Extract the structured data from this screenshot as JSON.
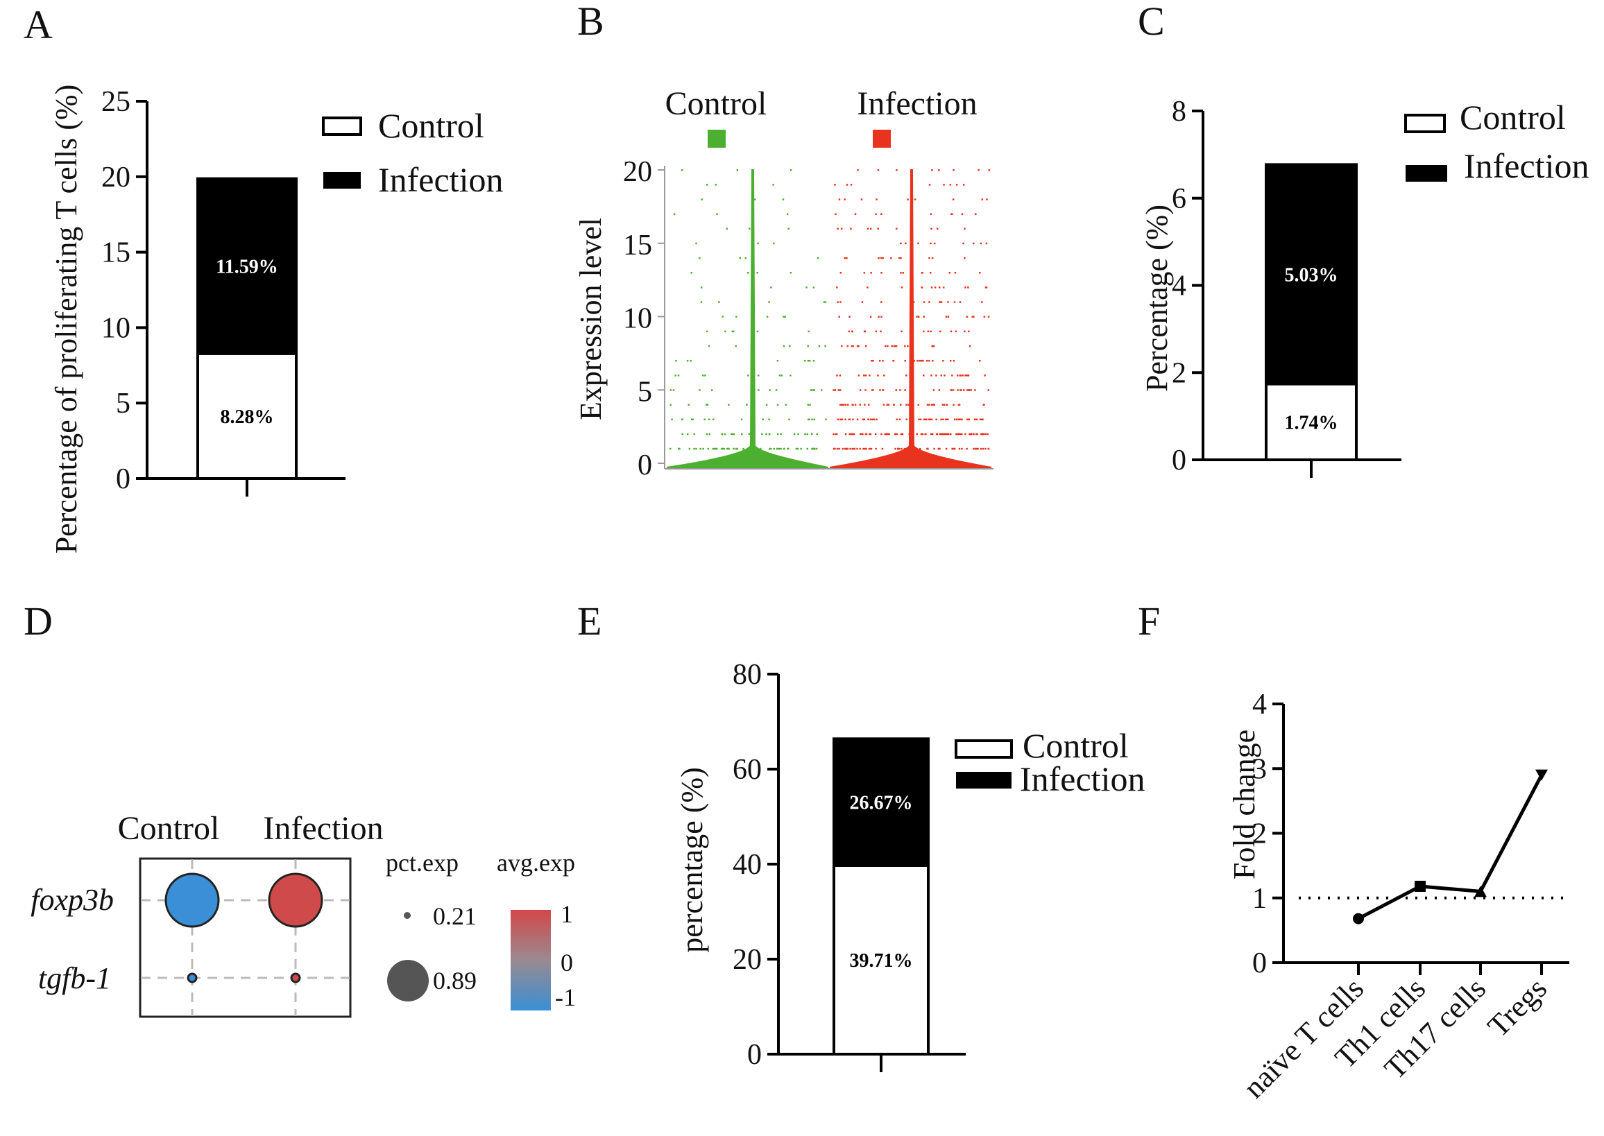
{
  "panels": {
    "A": {
      "letter": "A",
      "ylabel": "Percentage of proliferating T cells (%)",
      "yticks": [
        0,
        5,
        10,
        15,
        20,
        25
      ],
      "ylim": [
        0,
        25
      ],
      "legend": [
        "Control",
        "Infection"
      ],
      "segments": [
        {
          "name": "Control",
          "value": 8.28,
          "label": "8.28%",
          "color": "#ffffff"
        },
        {
          "name": "Infection",
          "value": 11.59,
          "label": "11.59%",
          "color": "#000000"
        }
      ]
    },
    "B": {
      "letter": "B",
      "ylabel": "Expression level",
      "yticks": [
        0,
        5,
        10,
        15,
        20
      ],
      "ylim": [
        0,
        20
      ],
      "groups": [
        {
          "name": "Control",
          "color": "#4caf2f"
        },
        {
          "name": "Infection",
          "color": "#e8331e"
        }
      ]
    },
    "C": {
      "letter": "C",
      "ylabel": "Percentage (%)",
      "yticks": [
        0,
        2,
        4,
        6,
        8
      ],
      "ylim": [
        0,
        8
      ],
      "legend": [
        "Control",
        "Infection"
      ],
      "segments": [
        {
          "name": "Control",
          "value": 1.74,
          "label": "1.74%",
          "color": "#ffffff"
        },
        {
          "name": "Infection",
          "value": 5.03,
          "label": "5.03%",
          "color": "#000000"
        }
      ]
    },
    "D": {
      "letter": "D",
      "columns": [
        "Control",
        "Infection"
      ],
      "genes": [
        "foxp3b",
        "tgfb-1"
      ],
      "dots": [
        {
          "gene": "foxp3b",
          "group": "Control",
          "pct_exp": 0.89,
          "avg_exp": -1,
          "color": "#3a8fd6"
        },
        {
          "gene": "foxp3b",
          "group": "Infection",
          "pct_exp": 0.89,
          "avg_exp": 1,
          "color": "#cf4b4b"
        },
        {
          "gene": "tgfb-1",
          "group": "Control",
          "pct_exp": 0.21,
          "avg_exp": -1,
          "color": "#3a8fd6"
        },
        {
          "gene": "tgfb-1",
          "group": "Infection",
          "pct_exp": 0.21,
          "avg_exp": 1,
          "color": "#cf4b4b"
        }
      ],
      "size_legend_title": "pct.exp",
      "size_legend": [
        {
          "value": 0.21,
          "label": "0.21"
        },
        {
          "value": 0.89,
          "label": "0.89"
        }
      ],
      "color_legend_title": "avg.exp",
      "color_legend_ticks": [
        "1",
        "0",
        "-1"
      ]
    },
    "E": {
      "letter": "E",
      "ylabel": "percentage (%)",
      "yticks": [
        0,
        20,
        40,
        60,
        80
      ],
      "ylim": [
        0,
        80
      ],
      "legend": [
        "Control",
        "Infection"
      ],
      "segments": [
        {
          "name": "Control",
          "value": 39.71,
          "label": "39.71%",
          "color": "#ffffff"
        },
        {
          "name": "Infection",
          "value": 26.67,
          "label": "26.67%",
          "color": "#000000"
        }
      ]
    },
    "F": {
      "letter": "F",
      "ylabel": "Fold change",
      "yticks": [
        0,
        1,
        2,
        3,
        4
      ],
      "ylim": [
        0,
        4
      ],
      "reference_line": 1,
      "categories": [
        "naïve T cells",
        "Th1 cells",
        "Th17 cells",
        "Tregs"
      ],
      "values": [
        0.68,
        1.18,
        1.1,
        2.9
      ]
    }
  },
  "chart_data": [
    {
      "type": "bar",
      "stacked": true,
      "panel": "A",
      "ylabel": "Percentage of proliferating T cells (%)",
      "ylim": [
        0,
        25
      ],
      "series": [
        {
          "name": "Control",
          "values": [
            8.28
          ]
        },
        {
          "name": "Infection",
          "values": [
            11.59
          ]
        }
      ]
    },
    {
      "type": "violin",
      "panel": "B",
      "ylabel": "Expression level",
      "ylim": [
        0,
        20
      ],
      "categories": [
        "Control",
        "Infection"
      ]
    },
    {
      "type": "bar",
      "stacked": true,
      "panel": "C",
      "ylabel": "Percentage (%)",
      "ylim": [
        0,
        8
      ],
      "series": [
        {
          "name": "Control",
          "values": [
            1.74
          ]
        },
        {
          "name": "Infection",
          "values": [
            5.03
          ]
        }
      ]
    },
    {
      "type": "scatter",
      "subtype": "dotplot",
      "panel": "D",
      "x": [
        "Control",
        "Infection"
      ],
      "y": [
        "foxp3b",
        "tgfb-1"
      ],
      "size_title": "pct.exp",
      "color_title": "avg.exp"
    },
    {
      "type": "bar",
      "stacked": true,
      "panel": "E",
      "ylabel": "percentage (%)",
      "ylim": [
        0,
        80
      ],
      "series": [
        {
          "name": "Control",
          "values": [
            39.71
          ]
        },
        {
          "name": "Infection",
          "values": [
            26.67
          ]
        }
      ]
    },
    {
      "type": "line",
      "panel": "F",
      "ylabel": "Fold change",
      "ylim": [
        0,
        4
      ],
      "categories": [
        "naïve T cells",
        "Th1 cells",
        "Th17 cells",
        "Tregs"
      ],
      "values": [
        0.68,
        1.18,
        1.1,
        2.9
      ]
    }
  ]
}
